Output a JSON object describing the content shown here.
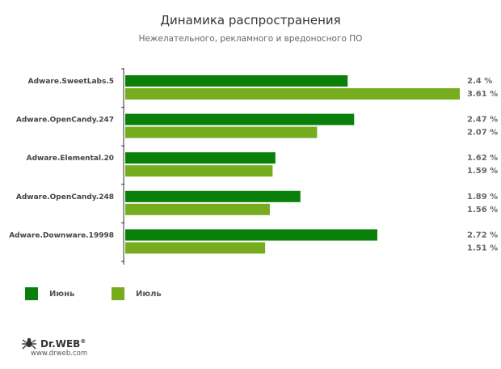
{
  "header": {
    "title": "Динамика распространения",
    "subtitle": "Нежелательного, рекламного и вредоносного ПО"
  },
  "chart_data": {
    "type": "bar",
    "orientation": "horizontal",
    "categories": [
      "Adware.SweetLabs.5",
      "Adware.OpenCandy.247",
      "Adware.Elemental.20",
      "Adware.OpenCandy.248",
      "Adware.Downware.19998"
    ],
    "series": [
      {
        "name": "Июнь",
        "values": [
          2.4,
          2.47,
          1.62,
          1.89,
          2.72
        ],
        "labels": [
          "2.4 %",
          "2.47 %",
          "1.62 %",
          "1.89 %",
          "2.72 %"
        ],
        "color": "#0a7f0a"
      },
      {
        "name": "Июль",
        "values": [
          3.61,
          2.07,
          1.59,
          1.56,
          1.51
        ],
        "labels": [
          "3.61 %",
          "2.07 %",
          "1.59 %",
          "1.56 %",
          "1.51 %"
        ],
        "color": "#76ad1f"
      }
    ],
    "xlim": [
      0,
      3.61
    ],
    "grid": false,
    "legend": "bottom-left"
  },
  "legend": {
    "items": [
      {
        "label": "Июнь",
        "color": "#0a7f0a"
      },
      {
        "label": "Июль",
        "color": "#76ad1f"
      }
    ]
  },
  "brand": {
    "name": "Dr.WEB",
    "mark": "®",
    "url": "www.drweb.com",
    "icon": "spider-icon"
  }
}
